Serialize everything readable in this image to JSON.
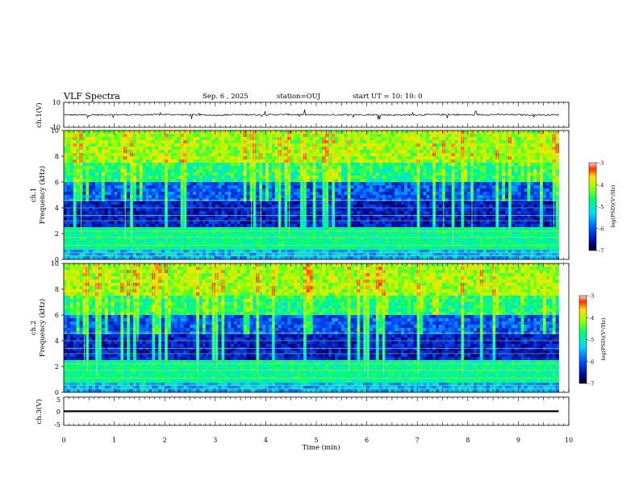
{
  "header": {
    "title": "VLF Spectra",
    "date": "Sep. 6  , 2025",
    "station": "station=OUJ",
    "start_ut": "start  UT =   10: 10: 0"
  },
  "chart_data": [
    {
      "id": "ch1-waveform",
      "type": "line",
      "ylabel": "ch.1(V)",
      "ylim": [
        -10,
        10
      ],
      "yticks": [
        "10",
        "-10"
      ],
      "xlim": [
        0,
        10
      ],
      "x": [
        0,
        0.5,
        1,
        1.5,
        2,
        2.5,
        3,
        3.5,
        4,
        4.5,
        5,
        5.5,
        6,
        6.5,
        7,
        7.5,
        8,
        8.5,
        9,
        9.5,
        9.8
      ],
      "y": [
        0,
        -0.2,
        0.1,
        -0.1,
        0.2,
        0,
        -0.3,
        0.1,
        0,
        0.2,
        -0.1,
        0,
        0.1,
        -0.2,
        0,
        0.1,
        -0.1,
        0.2,
        0,
        -0.1,
        0
      ],
      "color": "#000000"
    },
    {
      "id": "ch1-spectrogram",
      "type": "heatmap",
      "ylabel_line1": "ch.1",
      "ylabel_line2": "Frequency  (kHz)",
      "ylim": [
        0,
        10
      ],
      "yticks": [
        "0",
        "2",
        "4",
        "6",
        "8",
        "10"
      ],
      "xlim": [
        0,
        10
      ],
      "colorbar": {
        "label": "log(PSD)(V²/Hz)",
        "range": [
          -7,
          -3
        ],
        "ticks": [
          "-3",
          "-4",
          "-5",
          "-6",
          "-7"
        ]
      }
    },
    {
      "id": "ch2-spectrogram",
      "type": "heatmap",
      "ylabel_line1": "ch.2",
      "ylabel_line2": "Frequency  (kHz)",
      "ylim": [
        0,
        10
      ],
      "yticks": [
        "0",
        "2",
        "4",
        "6",
        "8",
        "10"
      ],
      "xlim": [
        0,
        10
      ],
      "colorbar": {
        "label": "log(PSD)(V²/Hz)",
        "range": [
          -7,
          -3
        ],
        "ticks": [
          "-3",
          "-4",
          "-5",
          "-6",
          "-7"
        ]
      }
    },
    {
      "id": "ch3-waveform",
      "type": "line",
      "ylabel": "ch.3(V)",
      "ylim": [
        -5,
        5
      ],
      "yticks": [
        "5",
        "0",
        "-5"
      ],
      "xlim": [
        0,
        10
      ],
      "x": [
        0,
        9.8
      ],
      "y": [
        0,
        0
      ],
      "color": "#000000"
    }
  ],
  "xaxis": {
    "label": "Time  (min)",
    "ticks": [
      "0",
      "1",
      "2",
      "3",
      "4",
      "5",
      "6",
      "7",
      "8",
      "9",
      "10"
    ]
  },
  "colors": {
    "low": "#000080",
    "mid": "#00ff7f",
    "high": "#ffff00",
    "peak": "#ff0000"
  }
}
